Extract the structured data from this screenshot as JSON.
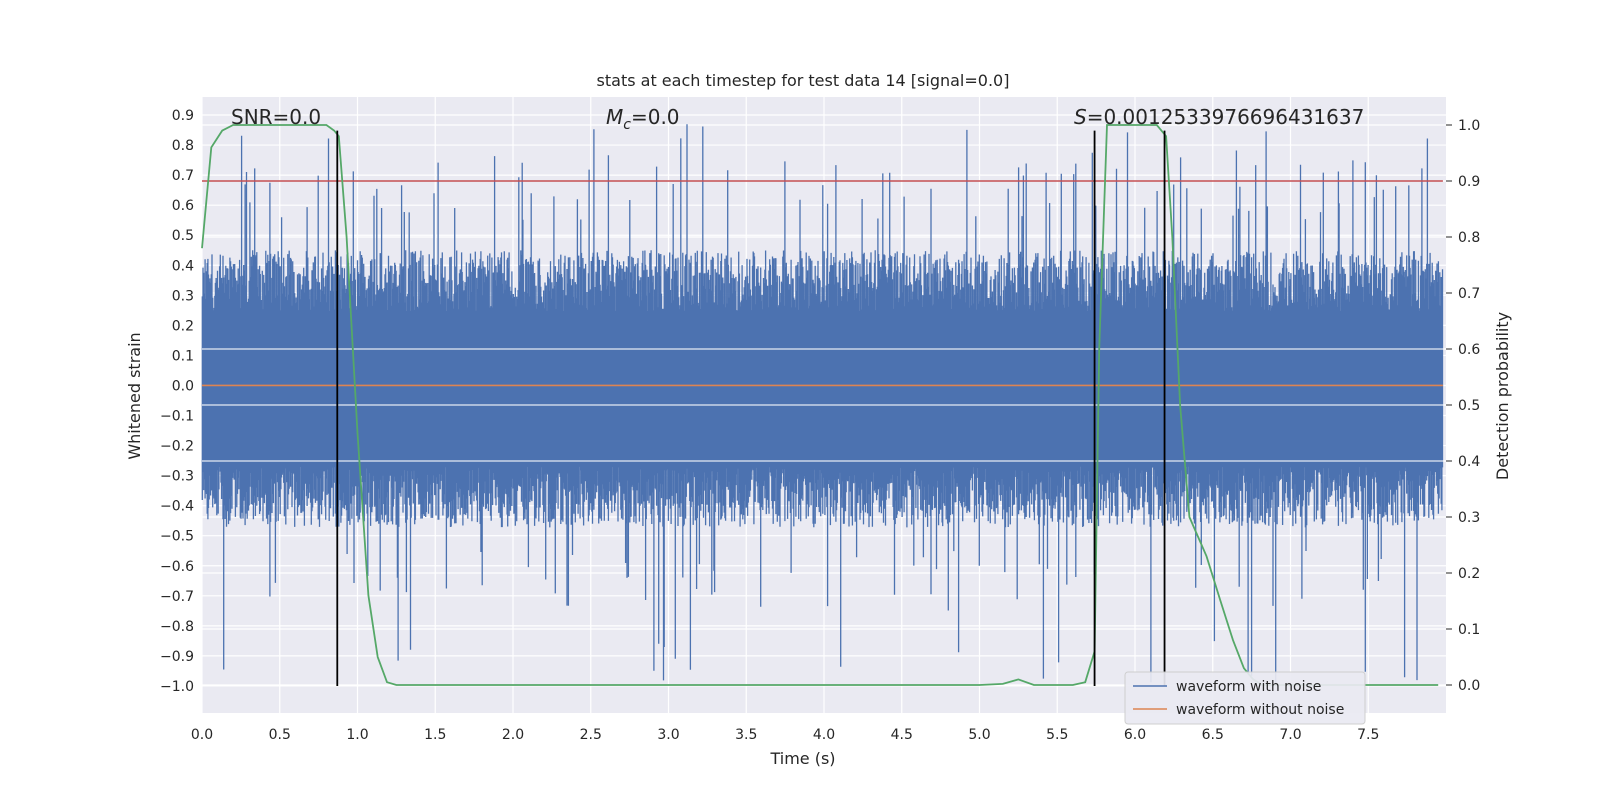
{
  "chart_data": {
    "type": "line",
    "title": "stats at each timestep for test data 14 [signal=0.0]",
    "xlabel": "Time (s)",
    "ylabel": "Whitened strain",
    "y2label": "Detection probability",
    "xlim": [
      0.0,
      8.0
    ],
    "ylim": [
      -1.09,
      0.96
    ],
    "y2lim": [
      -0.05,
      1.05
    ],
    "x_ticks": [
      "0.0",
      "0.5",
      "1.0",
      "1.5",
      "2.0",
      "2.5",
      "3.0",
      "3.5",
      "4.0",
      "4.5",
      "5.0",
      "5.5",
      "6.0",
      "6.5",
      "7.0",
      "7.5"
    ],
    "y_ticks": [
      "0.9",
      "0.8",
      "0.7",
      "0.6",
      "0.5",
      "0.4",
      "0.3",
      "0.2",
      "0.1",
      "0.0",
      "−0.1",
      "−0.2",
      "−0.3",
      "−0.4",
      "−0.5",
      "−0.6",
      "−0.7",
      "−0.8",
      "−0.9",
      "−1.0"
    ],
    "y2_ticks": [
      "1.0",
      "0.9",
      "0.8",
      "0.7",
      "0.6",
      "0.5",
      "0.4",
      "0.3",
      "0.2",
      "0.1",
      "0.0"
    ],
    "grid": true,
    "legend_placement": "lower-right",
    "annotations": {
      "snr": "SNR=0.0",
      "mc_symbol": "M",
      "mc_sub": "c",
      "mc_value": "=0.0",
      "s_symbol": "S",
      "s_value": "=0.0012533976696431637"
    },
    "series": [
      {
        "name": "waveform with noise",
        "color": "#4c72b0",
        "kind": "noise",
        "envelope_typical": 0.45,
        "envelope_max": 0.87,
        "envelope_min": -1.0
      },
      {
        "name": "waveform without noise",
        "color": "#dd8452",
        "values_y": 0.0
      }
    ],
    "threshold": {
      "axis": "y2",
      "value": 0.9,
      "color": "#c44e52"
    },
    "detection_probability": {
      "color": "#55a868",
      "x": [
        0.0,
        0.06,
        0.13,
        0.2,
        0.5,
        0.8,
        0.85,
        0.88,
        0.93,
        1.0,
        1.07,
        1.13,
        1.19,
        1.25,
        2.0,
        3.0,
        4.0,
        5.0,
        5.15,
        5.25,
        5.35,
        5.45,
        5.6,
        5.68,
        5.74,
        5.77,
        5.82,
        6.0,
        6.14,
        6.2,
        6.24,
        6.29,
        6.35,
        6.46,
        6.55,
        6.63,
        6.7,
        6.76,
        6.82,
        7.0,
        7.5,
        7.95
      ],
      "y": [
        0.78,
        0.96,
        0.99,
        1.0,
        1.0,
        1.0,
        0.99,
        0.98,
        0.8,
        0.45,
        0.16,
        0.05,
        0.005,
        0.0,
        0.0,
        0.0,
        0.0,
        0.0,
        0.002,
        0.01,
        0.0,
        0.0,
        0.0,
        0.005,
        0.06,
        0.6,
        1.0,
        1.0,
        1.0,
        0.98,
        0.8,
        0.5,
        0.3,
        0.23,
        0.15,
        0.08,
        0.03,
        0.01,
        0.0,
        0.0,
        0.0,
        0.0
      ]
    },
    "vertical_lines_x": [
      0.87,
      5.74,
      6.19
    ]
  }
}
